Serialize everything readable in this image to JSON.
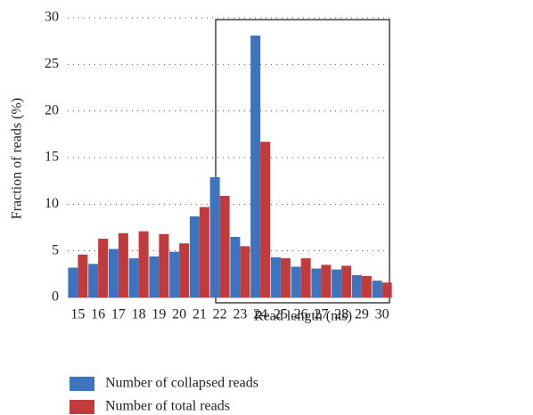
{
  "chart_data": {
    "type": "bar",
    "x_label": "Read length (nts)",
    "y_label": "Fraction of reads (%)",
    "categories": [
      "15",
      "16",
      "17",
      "18",
      "19",
      "20",
      "21",
      "22",
      "23",
      "24",
      "25",
      "26",
      "27",
      "28",
      "29",
      "30"
    ],
    "series": [
      {
        "name": "Number of collapsed reads",
        "color": "#3d74bf",
        "values": [
          3.2,
          3.6,
          5.2,
          4.2,
          4.4,
          4.9,
          8.7,
          12.9,
          6.5,
          28.1,
          4.3,
          3.3,
          3.1,
          3.0,
          2.4,
          1.8
        ]
      },
      {
        "name": "Number of total reads",
        "color": "#c13b3c",
        "values": [
          4.6,
          6.3,
          6.9,
          7.1,
          6.8,
          5.8,
          9.7,
          10.9,
          5.5,
          16.7,
          4.2,
          4.2,
          3.5,
          3.4,
          2.3,
          1.6
        ]
      }
    ],
    "ylim": [
      0,
      30
    ],
    "yticks": [
      0,
      5,
      10,
      15,
      20,
      25,
      30
    ],
    "grid": true
  }
}
